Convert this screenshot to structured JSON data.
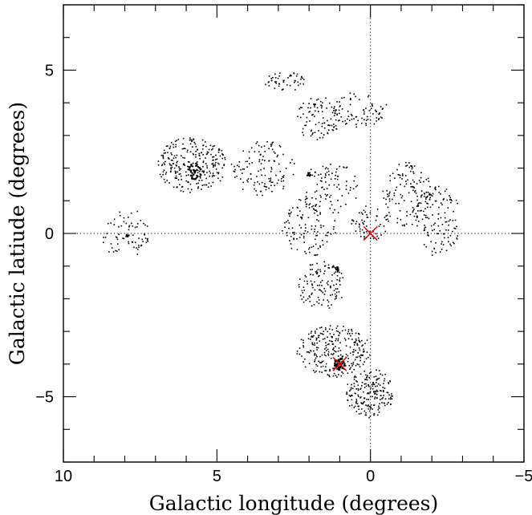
{
  "chart_data": {
    "type": "scatter",
    "xlabel": "Galactic longitude (degrees)",
    "ylabel": "Galactic latiude (degrees)",
    "xlim": [
      10,
      -5
    ],
    "ylim": [
      -7,
      7
    ],
    "x_ticks": [
      10,
      5,
      0,
      -5
    ],
    "x_tick_labels": [
      "10",
      "5",
      "0",
      "−5"
    ],
    "y_ticks": [
      -5,
      0,
      5
    ],
    "y_tick_labels": [
      "−5",
      "0",
      "5"
    ],
    "reference_lines": {
      "x": 0,
      "y": 0,
      "style": "dotted"
    },
    "point_color": "#000000",
    "marker_color": "#e00000",
    "markers": [
      {
        "x": 0.0,
        "y": 0.0,
        "symbol": "x"
      },
      {
        "x": 1.0,
        "y": -4.0,
        "symbol": "x"
      }
    ],
    "fields": [
      {
        "shape": "ellipse",
        "center": [
          8.0,
          0.0
        ],
        "radius": [
          0.8,
          0.8
        ],
        "count": 70
      },
      {
        "shape": "ellipse",
        "center": [
          5.8,
          2.1
        ],
        "radius": [
          1.15,
          0.85
        ],
        "count": 260
      },
      {
        "shape": "ellipse",
        "center": [
          3.5,
          2.0
        ],
        "radius": [
          1.05,
          0.85
        ],
        "count": 120
      },
      {
        "shape": "ellipse",
        "center": [
          2.8,
          4.65
        ],
        "radius": [
          0.65,
          0.3
        ],
        "count": 50
      },
      {
        "shape": "ellipse",
        "center": [
          1.7,
          3.5
        ],
        "radius": [
          0.7,
          0.7
        ],
        "count": 90
      },
      {
        "shape": "ellipse",
        "center": [
          0.35,
          3.8
        ],
        "radius": [
          0.9,
          0.55
        ],
        "count": 80
      },
      {
        "shape": "ellipse",
        "center": [
          1.3,
          1.4
        ],
        "radius": [
          0.9,
          0.85
        ],
        "count": 90
      },
      {
        "shape": "ellipse",
        "center": [
          2.0,
          0.2
        ],
        "radius": [
          0.9,
          0.9
        ],
        "count": 110
      },
      {
        "shape": "ellipse",
        "center": [
          0.0,
          0.3
        ],
        "radius": [
          0.65,
          0.55
        ],
        "count": 60
      },
      {
        "shape": "ellipse",
        "center": [
          1.6,
          -1.6
        ],
        "radius": [
          0.75,
          0.8
        ],
        "count": 120
      },
      {
        "shape": "ellipse",
        "center": [
          -1.2,
          1.2
        ],
        "radius": [
          0.8,
          1.0
        ],
        "count": 120
      },
      {
        "shape": "ellipse",
        "center": [
          -2.2,
          0.4
        ],
        "radius": [
          0.75,
          1.1
        ],
        "count": 130
      },
      {
        "shape": "ellipse",
        "center": [
          1.2,
          -3.6
        ],
        "radius": [
          1.2,
          0.8
        ],
        "count": 260
      },
      {
        "shape": "ellipse",
        "center": [
          0.0,
          -4.9
        ],
        "radius": [
          0.8,
          0.75
        ],
        "count": 200
      }
    ],
    "dense_clumps": [
      {
        "x": 1.0,
        "y": -4.0,
        "count": 60,
        "spread": 0.18
      },
      {
        "x": 5.7,
        "y": 1.9,
        "count": 40,
        "spread": 0.25
      },
      {
        "x": 2.0,
        "y": 1.8,
        "count": 10,
        "spread": 0.06
      },
      {
        "x": 1.1,
        "y": -1.1,
        "count": 10,
        "spread": 0.08
      },
      {
        "x": 7.9,
        "y": -0.05,
        "count": 6,
        "spread": 0.05
      }
    ]
  }
}
